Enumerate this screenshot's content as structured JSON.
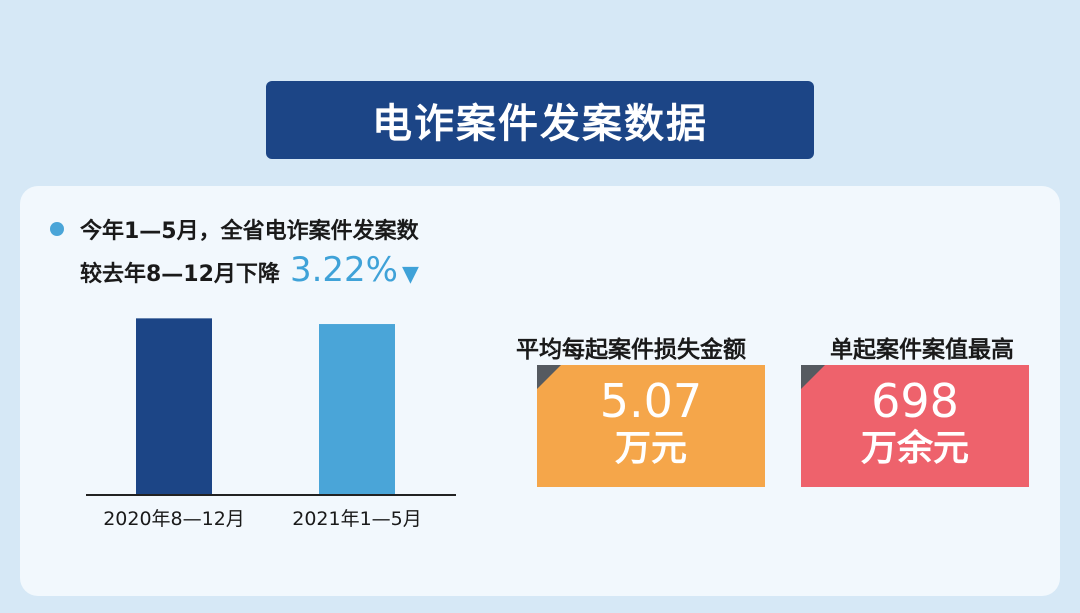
{
  "title": "电诈案件发案数据",
  "summary": {
    "line1": "今年1—5月，全省电诈案件发案数",
    "line2": "较去年8—12月下降",
    "percent": "3.22%",
    "arrow": "▼"
  },
  "colors": {
    "banner": "#1c4586",
    "bar_prev": "#1c4586",
    "bar_curr": "#4aa5d8",
    "accent": "#3fa2d8",
    "orange": "#f5a64a",
    "red": "#ee626c"
  },
  "chart_data": {
    "type": "bar",
    "categories": [
      "2020年8—12月",
      "2021年1—5月"
    ],
    "values": [
      100,
      96.78
    ],
    "ylim": [
      0,
      100
    ],
    "grid": false,
    "legend": "none"
  },
  "stats": [
    {
      "label": "平均每起案件损失金额",
      "value": "5.07",
      "unit": "万元"
    },
    {
      "label": "单起案件案值最高",
      "value": "698",
      "unit": "万余元"
    }
  ]
}
